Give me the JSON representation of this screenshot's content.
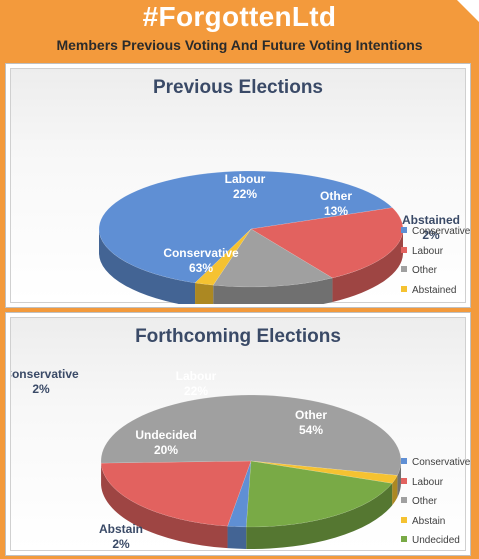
{
  "header": {
    "title": "#ForgottenLtd",
    "subtitle": "Members Previous Voting And Future Voting Intentions"
  },
  "colors": {
    "conservative": "#5f8fd4",
    "labour": "#e2625f",
    "other": "#a0a0a0",
    "abstained": "#f5c231",
    "undecided": "#79aa46",
    "background": "#f39a3c"
  },
  "chart_data": [
    {
      "type": "pie",
      "title": "Previous Elections",
      "legend_position": "right",
      "slices": [
        {
          "name": "Conservative",
          "value": 63,
          "label": "63%"
        },
        {
          "name": "Labour",
          "value": 22,
          "label": "22%"
        },
        {
          "name": "Other",
          "value": 13,
          "label": "13%"
        },
        {
          "name": "Abstained",
          "value": 2,
          "label": "2%"
        }
      ]
    },
    {
      "type": "pie",
      "title": "Forthcoming Elections",
      "legend_position": "right",
      "slices": [
        {
          "name": "Conservative",
          "value": 2,
          "label": "2%"
        },
        {
          "name": "Labour",
          "value": 22,
          "label": "22%"
        },
        {
          "name": "Other",
          "value": 54,
          "label": "54%"
        },
        {
          "name": "Abstain",
          "value": 2,
          "label": "2%"
        },
        {
          "name": "Undecided",
          "value": 20,
          "label": "20%"
        }
      ]
    }
  ]
}
